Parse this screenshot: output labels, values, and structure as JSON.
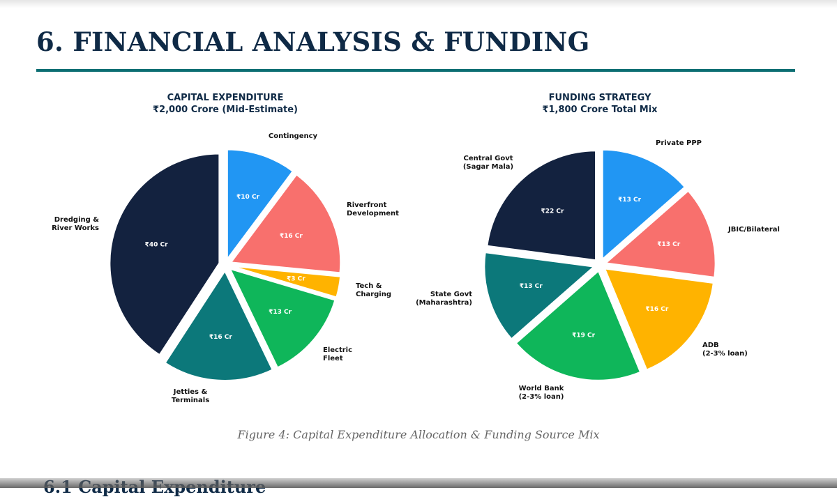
{
  "page": {
    "title": "6. FINANCIAL ANALYSIS & FUNDING",
    "caption": "Figure 4: Capital Expenditure Allocation & Funding Source Mix",
    "next_heading": "6.1 Capital Expenditure"
  },
  "colors": {
    "title": "#0f2a46",
    "rule": "#0c6e73",
    "navy": "#13223f",
    "blue": "#2196f3",
    "coral": "#f8706d",
    "amber": "#ffb300",
    "green": "#0fb65a",
    "teal": "#0c787a"
  },
  "chart_data": [
    {
      "type": "pie",
      "title": "CAPITAL EXPENDITURE",
      "subtitle": "₹2,000 Crore (Mid-Estimate)",
      "start_angle_deg": 90,
      "direction": "clockwise",
      "slices": [
        {
          "label": "Contingency",
          "value": 10,
          "value_label": "₹10 Cr",
          "color": "#2196f3"
        },
        {
          "label": "Riverfront Development",
          "value": 16,
          "value_label": "₹16 Cr",
          "color": "#f8706d"
        },
        {
          "label": "Tech & Charging",
          "value": 3,
          "value_label": "₹3 Cr",
          "color": "#ffb300"
        },
        {
          "label": "Electric Fleet",
          "value": 13,
          "value_label": "₹13 Cr",
          "color": "#0fb65a"
        },
        {
          "label": "Jetties & Terminals",
          "value": 16,
          "value_label": "₹16 Cr",
          "color": "#0c787a"
        },
        {
          "label": "Dredging & River Works",
          "value": 40,
          "value_label": "₹40 Cr",
          "color": "#13223f"
        }
      ]
    },
    {
      "type": "pie",
      "title": "FUNDING STRATEGY",
      "subtitle": "₹1,800 Crore Total Mix",
      "start_angle_deg": 90,
      "direction": "clockwise",
      "slices": [
        {
          "label": "Private PPP",
          "value": 13,
          "value_label": "₹13 Cr",
          "color": "#2196f3"
        },
        {
          "label": "JBIC/Bilateral",
          "value": 13,
          "value_label": "₹13 Cr",
          "color": "#f8706d"
        },
        {
          "label": "ADB (2-3% loan)",
          "value": 16,
          "value_label": "₹16 Cr",
          "color": "#ffb300"
        },
        {
          "label": "World Bank (2-3% loan)",
          "value": 19,
          "value_label": "₹19 Cr",
          "color": "#0fb65a"
        },
        {
          "label": "State Govt (Maharashtra)",
          "value": 13,
          "value_label": "₹13 Cr",
          "color": "#0c787a"
        },
        {
          "label": "Central Govt (Sagar Mala)",
          "value": 22,
          "value_label": "₹22 Cr",
          "color": "#13223f"
        }
      ]
    }
  ]
}
